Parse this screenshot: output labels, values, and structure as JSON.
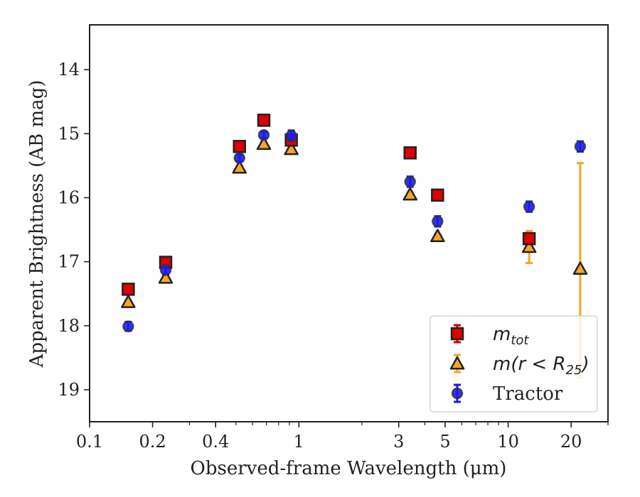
{
  "chart_data": {
    "type": "scatter",
    "title": "",
    "xlabel": "Observed-frame Wavelength (μm)",
    "ylabel": "Apparent Brightness (AB mag)",
    "xscale": "log",
    "xlim": [
      0.1,
      30
    ],
    "ylim": [
      19.5,
      13.3
    ],
    "y_inverted": true,
    "xticks": [
      {
        "value": 0.1,
        "label": "0.1"
      },
      {
        "value": 0.2,
        "label": "0.2"
      },
      {
        "value": 0.4,
        "label": "0.4"
      },
      {
        "value": 1,
        "label": "1"
      },
      {
        "value": 3,
        "label": "3"
      },
      {
        "value": 5,
        "label": "5"
      },
      {
        "value": 10,
        "label": "10"
      },
      {
        "value": 20,
        "label": "20"
      }
    ],
    "yticks": [
      {
        "value": 14,
        "label": "14"
      },
      {
        "value": 15,
        "label": "15"
      },
      {
        "value": 16,
        "label": "16"
      },
      {
        "value": 17,
        "label": "17"
      },
      {
        "value": 18,
        "label": "18"
      },
      {
        "value": 19,
        "label": "19"
      }
    ],
    "legend_position": "lower-right",
    "series": [
      {
        "name": "m_tot",
        "marker": "square",
        "color": "#e00000",
        "error_color": "#d00000",
        "points": [
          {
            "x": 0.153,
            "y": 17.43,
            "err": 0.05
          },
          {
            "x": 0.231,
            "y": 17.01,
            "err": 0.05
          },
          {
            "x": 0.52,
            "y": 15.2,
            "err": 0.05
          },
          {
            "x": 0.68,
            "y": 14.79,
            "err": 0.05
          },
          {
            "x": 0.92,
            "y": 15.1,
            "err": 0.08
          },
          {
            "x": 3.4,
            "y": 15.3,
            "err": 0.05
          },
          {
            "x": 4.6,
            "y": 15.96,
            "err": 0.05
          },
          {
            "x": 12.6,
            "y": 16.64,
            "err": 0.08
          }
        ]
      },
      {
        "name": "m(r < R25)",
        "marker": "triangle",
        "color": "#f5a623",
        "error_color": "#f5a623",
        "points": [
          {
            "x": 0.153,
            "y": 17.63,
            "err": 0.03
          },
          {
            "x": 0.231,
            "y": 17.25,
            "err": 0.03
          },
          {
            "x": 0.52,
            "y": 15.53,
            "err": 0.03
          },
          {
            "x": 0.68,
            "y": 15.16,
            "err": 0.03
          },
          {
            "x": 0.92,
            "y": 15.24,
            "err": 0.03
          },
          {
            "x": 3.4,
            "y": 15.95,
            "err": 0.03
          },
          {
            "x": 4.6,
            "y": 16.6,
            "err": 0.03
          },
          {
            "x": 12.6,
            "y": 16.77,
            "err": 0.25
          },
          {
            "x": 22.1,
            "y": 17.11,
            "err_low": 1.65,
            "err_high": 1.7
          }
        ]
      },
      {
        "name": "Tractor",
        "marker": "circle",
        "color": "#1a1aff",
        "error_color": "#1a1adc",
        "points": [
          {
            "x": 0.153,
            "y": 18.01,
            "err": 0.07
          },
          {
            "x": 0.231,
            "y": 17.13,
            "err": 0.07
          },
          {
            "x": 0.52,
            "y": 15.38,
            "err": 0.05
          },
          {
            "x": 0.68,
            "y": 15.02,
            "err": 0.05
          },
          {
            "x": 0.92,
            "y": 15.03,
            "err": 0.08
          },
          {
            "x": 3.4,
            "y": 15.75,
            "err": 0.08
          },
          {
            "x": 4.6,
            "y": 16.37,
            "err": 0.08
          },
          {
            "x": 12.6,
            "y": 16.14,
            "err": 0.08
          },
          {
            "x": 22.1,
            "y": 15.2,
            "err": 0.08
          }
        ]
      }
    ],
    "legend": [
      {
        "series": 0,
        "label_main": "m",
        "label_sub": "tot",
        "label_tail": ""
      },
      {
        "series": 1,
        "label_main": "m(r < R",
        "label_sub": "25",
        "label_tail": ")"
      },
      {
        "series": 2,
        "label_main": "Tractor",
        "label_sub": "",
        "label_tail": ""
      }
    ]
  }
}
